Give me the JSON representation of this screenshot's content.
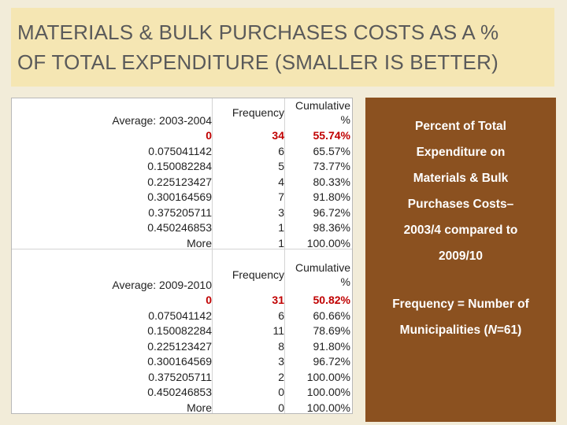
{
  "title": {
    "line1": "MATERIALS & BULK PURCHASES COSTS AS A %",
    "line2": "OF TOTAL EXPENDITURE (SMALLER IS BETTER)"
  },
  "table1": {
    "label": "Average: 2003-2004",
    "col_freq": "Frequency",
    "col_cum_1": "Cumulative",
    "col_cum_2": "%",
    "rows": [
      {
        "bin": "0",
        "freq": "34",
        "cum": "55.74%"
      },
      {
        "bin": "0.075041142",
        "freq": "6",
        "cum": "65.57%"
      },
      {
        "bin": "0.150082284",
        "freq": "5",
        "cum": "73.77%"
      },
      {
        "bin": "0.225123427",
        "freq": "4",
        "cum": "80.33%"
      },
      {
        "bin": "0.300164569",
        "freq": "7",
        "cum": "91.80%"
      },
      {
        "bin": "0.375205711",
        "freq": "3",
        "cum": "96.72%"
      },
      {
        "bin": "0.450246853",
        "freq": "1",
        "cum": "98.36%"
      },
      {
        "bin": "More",
        "freq": "1",
        "cum": "100.00%"
      }
    ]
  },
  "table2": {
    "label": "Average:  2009-2010",
    "col_freq": "Frequency",
    "col_cum_1": "Cumulative",
    "col_cum_2": "%",
    "rows": [
      {
        "bin": "0",
        "freq": "31",
        "cum": "50.82%"
      },
      {
        "bin": "0.075041142",
        "freq": "6",
        "cum": "60.66%"
      },
      {
        "bin": "0.150082284",
        "freq": "11",
        "cum": "78.69%"
      },
      {
        "bin": "0.225123427",
        "freq": "8",
        "cum": "91.80%"
      },
      {
        "bin": "0.300164569",
        "freq": "3",
        "cum": "96.72%"
      },
      {
        "bin": "0.375205711",
        "freq": "2",
        "cum": "100.00%"
      },
      {
        "bin": "0.450246853",
        "freq": "0",
        "cum": "100.00%"
      },
      {
        "bin": "More",
        "freq": "0",
        "cum": "100.00%"
      }
    ]
  },
  "side_panel": {
    "lines": [
      "Percent of Total",
      "Expenditure on",
      "Materials & Bulk",
      "Purchases Costs–",
      "2003/4 compared to",
      "2009/10"
    ],
    "freq_line1": "Frequency = Number of",
    "freq_line2_prefix": "Municipalities (",
    "freq_line2_n": "N",
    "freq_line2_suffix": "=61)"
  }
}
